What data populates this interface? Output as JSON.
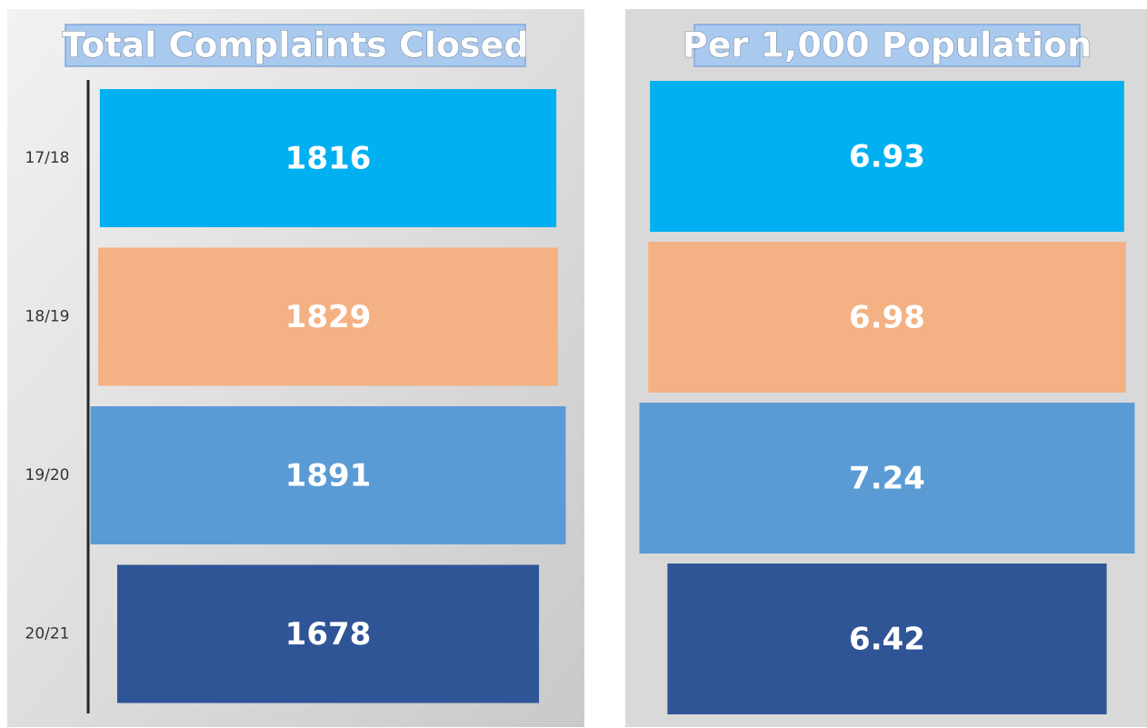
{
  "chart_data": [
    {
      "type": "funnel",
      "title": "Total Complaints Closed",
      "categories": [
        "17/18",
        "18/19",
        "19/20",
        "20/21"
      ],
      "values": [
        1816,
        1829,
        1891,
        1678
      ],
      "colors": [
        "#00b0f0",
        "#f4b183",
        "#5b9bd5",
        "#2f5597"
      ]
    },
    {
      "type": "funnel",
      "title": "Per 1,000 Population",
      "values": [
        6.93,
        6.98,
        7.24,
        6.42
      ],
      "colors": [
        "#00b0f0",
        "#f4b183",
        "#5b9bd5",
        "#2f5597"
      ]
    }
  ]
}
